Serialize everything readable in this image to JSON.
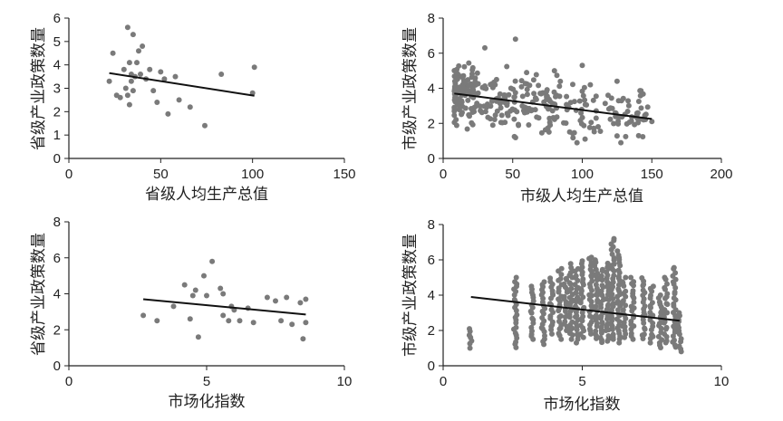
{
  "chart_data": [
    {
      "type": "scatter",
      "panel": "top-left",
      "xlabel": "省级人均生产总值",
      "ylabel": "省级产业政策数量",
      "xlim": [
        0,
        150
      ],
      "ylim": [
        0,
        6
      ],
      "xticks": [
        0,
        50,
        100,
        150
      ],
      "yticks": [
        0,
        1,
        2,
        3,
        4,
        5,
        6
      ],
      "points": [
        [
          22,
          3.3
        ],
        [
          24,
          4.5
        ],
        [
          26,
          2.7
        ],
        [
          28,
          2.6
        ],
        [
          30,
          3.8
        ],
        [
          31,
          3.0
        ],
        [
          32,
          5.6
        ],
        [
          32,
          2.7
        ],
        [
          33,
          4.1
        ],
        [
          33,
          2.3
        ],
        [
          34,
          3.6
        ],
        [
          34,
          3.3
        ],
        [
          35,
          5.3
        ],
        [
          35,
          2.9
        ],
        [
          36,
          3.5
        ],
        [
          37,
          4.1
        ],
        [
          38,
          4.6
        ],
        [
          39,
          3.6
        ],
        [
          40,
          4.8
        ],
        [
          42,
          3.4
        ],
        [
          44,
          3.8
        ],
        [
          46,
          2.9
        ],
        [
          48,
          2.4
        ],
        [
          50,
          3.7
        ],
        [
          52,
          3.4
        ],
        [
          54,
          1.9
        ],
        [
          58,
          3.5
        ],
        [
          60,
          2.5
        ],
        [
          66,
          2.2
        ],
        [
          74,
          1.4
        ],
        [
          83,
          3.6
        ],
        [
          100,
          2.8
        ],
        [
          101,
          3.9
        ]
      ],
      "trend": {
        "x": [
          22,
          101
        ],
        "y": [
          3.65,
          2.68
        ]
      }
    },
    {
      "type": "scatter",
      "panel": "top-right",
      "xlabel": "市级人均生产总值",
      "ylabel": "市级产业政策数量",
      "xlim": [
        0,
        200
      ],
      "ylim": [
        0,
        8
      ],
      "xticks": [
        0,
        50,
        100,
        150,
        200
      ],
      "yticks": [
        0,
        2,
        4,
        6,
        8
      ],
      "generator": {
        "count": 340,
        "x_range": [
          8,
          150
        ],
        "trend": {
          "x": [
            8,
            150
          ],
          "y": [
            3.7,
            2.25
          ]
        },
        "spread": 1.0
      },
      "extra_points": [
        [
          30,
          6.3
        ],
        [
          52,
          6.8
        ],
        [
          60,
          4.9
        ],
        [
          80,
          5.0
        ],
        [
          125,
          4.4
        ],
        [
          100,
          5.3
        ],
        [
          150,
          2.1
        ],
        [
          140,
          2.6
        ]
      ],
      "trend": {
        "x": [
          8,
          150
        ],
        "y": [
          3.7,
          2.25
        ]
      }
    },
    {
      "type": "scatter",
      "panel": "bottom-left",
      "xlabel": "市场化指数",
      "ylabel": "省级产业政策数量",
      "xlim": [
        0,
        10
      ],
      "ylim": [
        0,
        8
      ],
      "xticks": [
        0,
        5,
        10
      ],
      "yticks": [
        0,
        2,
        4,
        6,
        8
      ],
      "points": [
        [
          2.7,
          2.8
        ],
        [
          3.2,
          2.5
        ],
        [
          3.8,
          3.3
        ],
        [
          4.2,
          4.5
        ],
        [
          4.4,
          2.6
        ],
        [
          4.5,
          3.9
        ],
        [
          4.6,
          4.2
        ],
        [
          4.7,
          1.6
        ],
        [
          4.9,
          5.0
        ],
        [
          5.0,
          3.9
        ],
        [
          5.2,
          5.8
        ],
        [
          5.5,
          4.3
        ],
        [
          5.6,
          2.8
        ],
        [
          5.6,
          4.0
        ],
        [
          5.8,
          2.5
        ],
        [
          5.9,
          3.3
        ],
        [
          6.0,
          3.1
        ],
        [
          6.2,
          2.5
        ],
        [
          6.5,
          3.2
        ],
        [
          6.7,
          2.4
        ],
        [
          7.2,
          3.8
        ],
        [
          7.5,
          3.6
        ],
        [
          7.7,
          2.5
        ],
        [
          7.9,
          3.8
        ],
        [
          8.1,
          2.3
        ],
        [
          8.4,
          3.5
        ],
        [
          8.5,
          1.5
        ],
        [
          8.6,
          2.4
        ],
        [
          8.6,
          3.7
        ]
      ],
      "trend": {
        "x": [
          2.7,
          8.6
        ],
        "y": [
          3.7,
          2.85
        ]
      }
    },
    {
      "type": "scatter",
      "panel": "bottom-right",
      "xlabel": "市场化指数",
      "ylabel": "市级产业政策数量",
      "xlim": [
        0,
        10
      ],
      "ylim": [
        0,
        8
      ],
      "xticks": [
        0,
        5,
        10
      ],
      "yticks": [
        0,
        2,
        4,
        6,
        8
      ],
      "columns": [
        1.0,
        2.6,
        3.2,
        3.6,
        3.9,
        4.2,
        4.4,
        4.6,
        4.8,
        5.0,
        5.3,
        5.5,
        5.7,
        5.9,
        6.1,
        6.3,
        6.5,
        6.8,
        7.2,
        7.5,
        7.8,
        8.0,
        8.3,
        8.5
      ],
      "column_ranges": [
        [
          1.0,
          2.1
        ],
        [
          1.0,
          5.0
        ],
        [
          1.5,
          4.5
        ],
        [
          1.2,
          4.8
        ],
        [
          1.8,
          5.0
        ],
        [
          1.5,
          5.5
        ],
        [
          2.0,
          5.0
        ],
        [
          1.5,
          5.8
        ],
        [
          1.3,
          5.5
        ],
        [
          1.6,
          6.0
        ],
        [
          1.8,
          6.2
        ],
        [
          1.5,
          6.0
        ],
        [
          1.3,
          5.5
        ],
        [
          1.4,
          5.8
        ],
        [
          1.5,
          7.2
        ],
        [
          1.3,
          6.5
        ],
        [
          1.6,
          5.0
        ],
        [
          1.5,
          5.0
        ],
        [
          1.5,
          5.0
        ],
        [
          1.3,
          4.5
        ],
        [
          1.0,
          4.0
        ],
        [
          1.3,
          5.0
        ],
        [
          1.0,
          5.6
        ],
        [
          0.8,
          3.0
        ]
      ],
      "trend": {
        "x": [
          1.0,
          8.5
        ],
        "y": [
          3.9,
          2.55
        ]
      }
    }
  ]
}
